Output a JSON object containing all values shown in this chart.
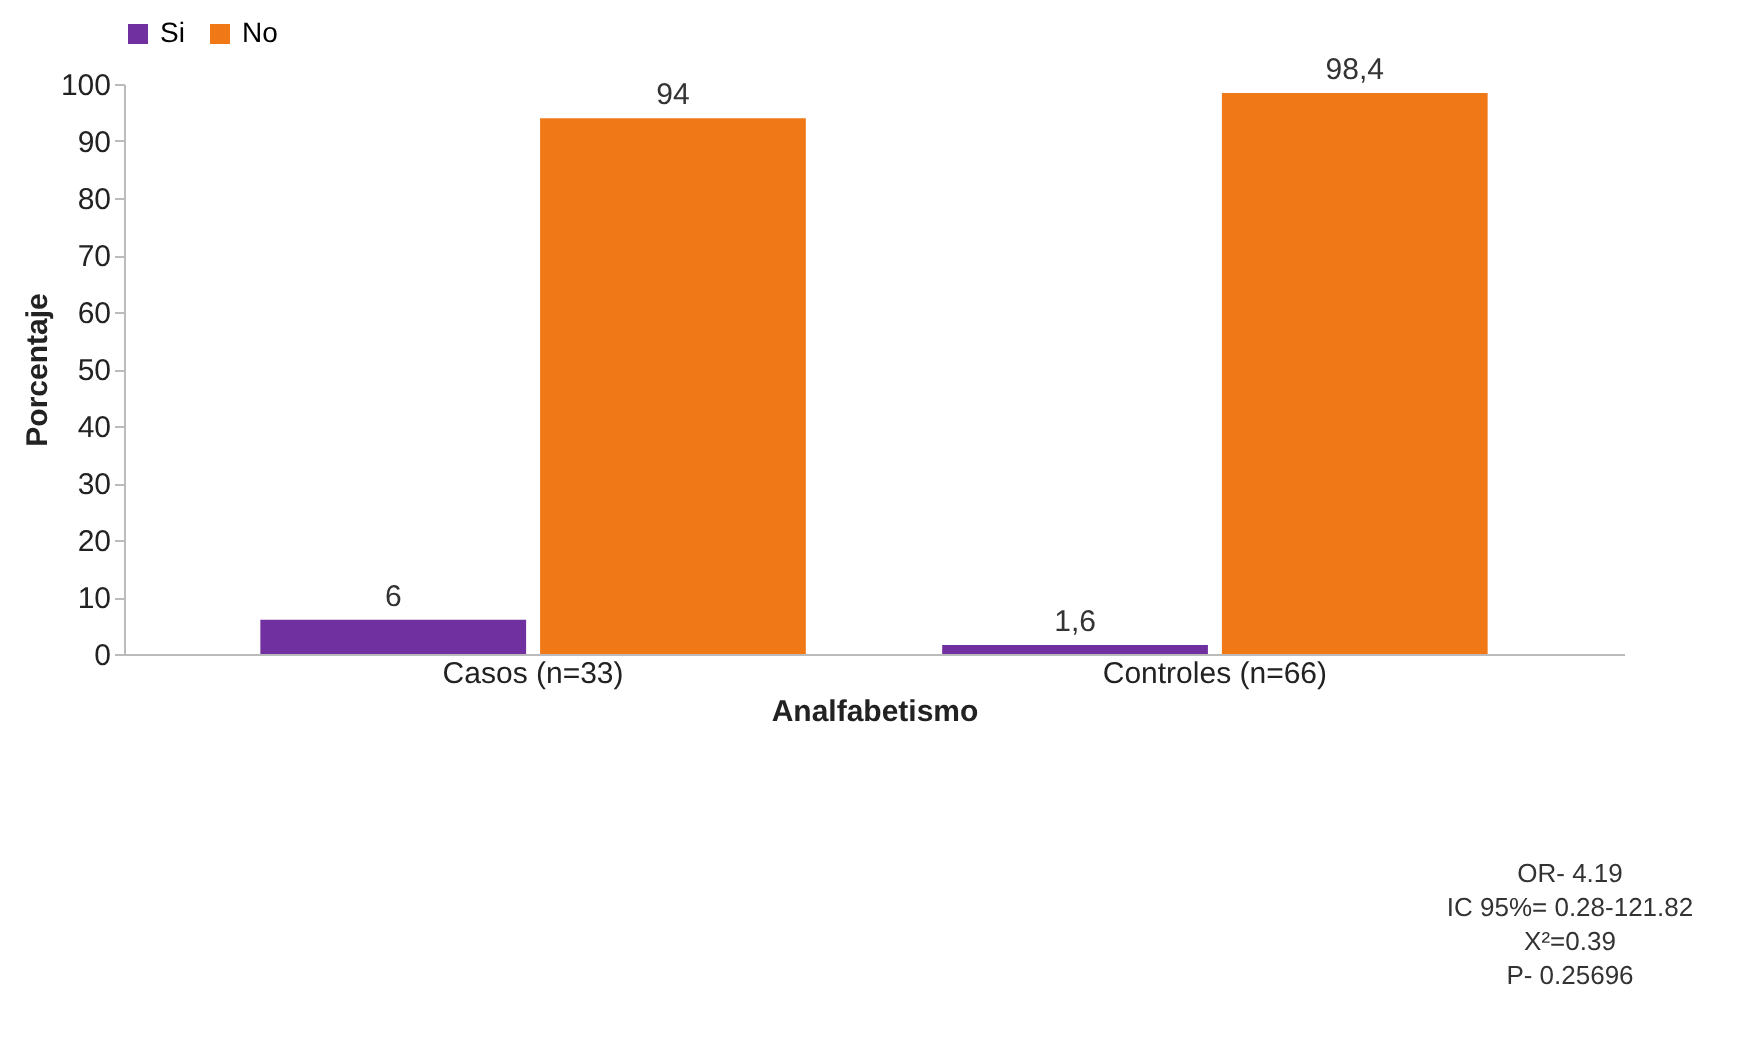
{
  "chart_data": {
    "type": "bar",
    "xlabel": "Analfabetismo",
    "ylabel": "Porcentaje",
    "categories": [
      "Casos (n=33)",
      "Controles (n=66)"
    ],
    "series": [
      {
        "name": "Si",
        "color": "#7030a0",
        "values": [
          6,
          1.6
        ],
        "value_labels": [
          "6",
          "1,6"
        ]
      },
      {
        "name": "No",
        "color": "#f07817",
        "values": [
          94,
          98.4
        ],
        "value_labels": [
          "94",
          "98,4"
        ]
      }
    ],
    "ylim": [
      0,
      100
    ],
    "yticks": [
      0,
      10,
      20,
      30,
      40,
      50,
      60,
      70,
      80,
      90,
      100
    ],
    "grid": false,
    "legend": "top",
    "annotations": [
      "OR- 4.19",
      "IC 95%= 0.28-121.82",
      "X²=0.39",
      "P- 0.25696"
    ]
  }
}
